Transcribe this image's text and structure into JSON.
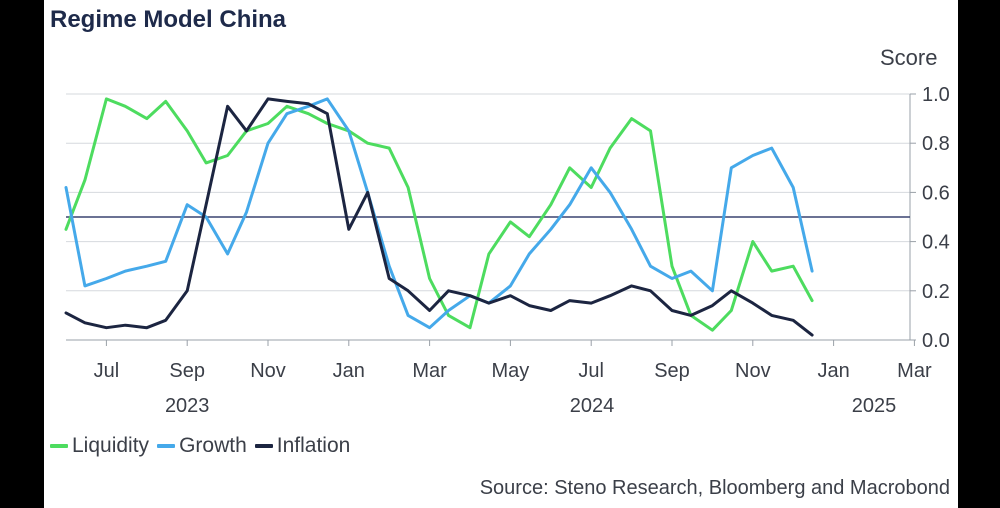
{
  "title": "Regime Model China",
  "source": "Source: Steno Research, Bloomberg and Macrobond",
  "colors": {
    "liquidity": "#4ddc5f",
    "growth": "#45a9ea",
    "inflation": "#1c2541",
    "grid": "#d6d9de",
    "reference": "#3a4470",
    "text": "#3b3f48"
  },
  "chart_data": {
    "type": "line",
    "title": "Regime Model China",
    "unit_label": "Score",
    "ylim": [
      0.0,
      1.0
    ],
    "y_ticks": [
      "0.0",
      "0.2",
      "0.4",
      "0.6",
      "0.8",
      "1.0"
    ],
    "grid": true,
    "reference_line": 0.5,
    "legend_position": "bottom-left",
    "x_ticks": [
      "Jul",
      "Sep",
      "Nov",
      "Jan",
      "Mar",
      "May",
      "Jul",
      "Sep",
      "Nov",
      "Jan",
      "Mar"
    ],
    "x_years": [
      "2023",
      "2024",
      "2025"
    ],
    "x_dates": [
      "2023-06-01",
      "2023-06-15",
      "2023-07-01",
      "2023-07-15",
      "2023-08-01",
      "2023-08-15",
      "2023-09-01",
      "2023-09-15",
      "2023-10-01",
      "2023-10-15",
      "2023-11-01",
      "2023-11-15",
      "2023-12-01",
      "2023-12-15",
      "2024-01-01",
      "2024-01-15",
      "2024-02-01",
      "2024-02-15",
      "2024-03-01",
      "2024-03-15",
      "2024-04-01",
      "2024-04-15",
      "2024-05-01",
      "2024-05-15",
      "2024-06-01",
      "2024-06-15",
      "2024-07-01",
      "2024-07-15",
      "2024-08-01",
      "2024-08-15",
      "2024-09-01",
      "2024-09-15",
      "2024-10-01",
      "2024-10-15",
      "2024-11-01",
      "2024-11-15",
      "2024-12-01",
      "2024-12-15"
    ],
    "series": [
      {
        "name": "Liquidity",
        "values": [
          0.45,
          0.65,
          0.98,
          0.95,
          0.9,
          0.97,
          0.85,
          0.72,
          0.75,
          0.85,
          0.88,
          0.95,
          0.92,
          0.88,
          0.85,
          0.8,
          0.78,
          0.62,
          0.25,
          0.1,
          0.05,
          0.35,
          0.48,
          0.42,
          0.55,
          0.7,
          0.62,
          0.78,
          0.9,
          0.85,
          0.3,
          0.1,
          0.04,
          0.12,
          0.4,
          0.28,
          0.3,
          0.16
        ]
      },
      {
        "name": "Growth",
        "values": [
          0.62,
          0.22,
          0.25,
          0.28,
          0.3,
          0.32,
          0.55,
          0.5,
          0.35,
          0.52,
          0.8,
          0.92,
          0.95,
          0.98,
          0.85,
          0.6,
          0.3,
          0.1,
          0.05,
          0.12,
          0.18,
          0.15,
          0.22,
          0.35,
          0.45,
          0.55,
          0.7,
          0.6,
          0.45,
          0.3,
          0.25,
          0.28,
          0.2,
          0.7,
          0.75,
          0.78,
          0.62,
          0.28
        ]
      },
      {
        "name": "Inflation",
        "values": [
          0.11,
          0.07,
          0.05,
          0.06,
          0.05,
          0.08,
          0.2,
          0.55,
          0.95,
          0.85,
          0.98,
          0.97,
          0.96,
          0.92,
          0.45,
          0.6,
          0.25,
          0.2,
          0.12,
          0.2,
          0.18,
          0.15,
          0.18,
          0.14,
          0.12,
          0.16,
          0.15,
          0.18,
          0.22,
          0.2,
          0.12,
          0.1,
          0.14,
          0.2,
          0.15,
          0.1,
          0.08,
          0.02
        ]
      }
    ]
  }
}
